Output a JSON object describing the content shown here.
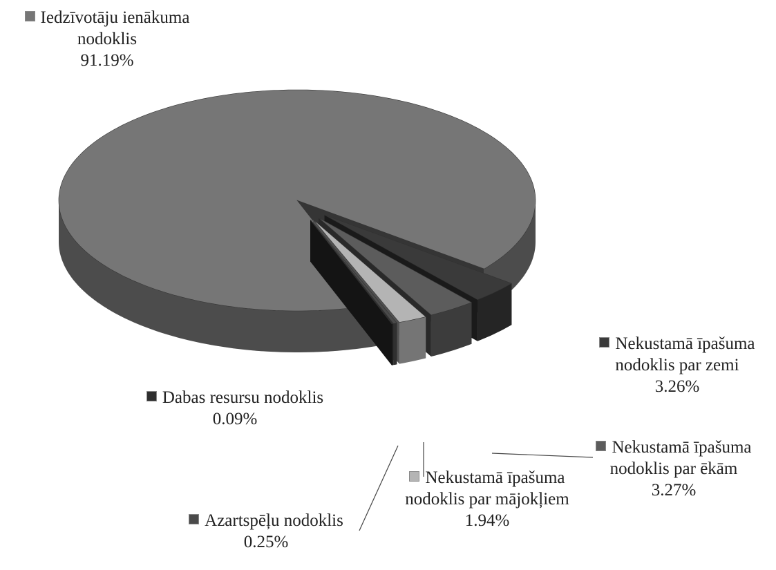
{
  "chart_data": {
    "type": "pie",
    "categories": [
      "Iedzīvotāju ienākuma nodoklis",
      "Nekustamā īpašuma nodoklis par zemi",
      "Nekustamā īpašuma nodoklis par ēkām",
      "Nekustamā īpašuma nodoklis par mājokļiem",
      "Azartspēļu nodoklis",
      "Dabas resursu nodoklis"
    ],
    "values": [
      91.19,
      3.26,
      3.27,
      1.94,
      0.25,
      0.09
    ],
    "value_labels": [
      "91.19%",
      "3.26%",
      "3.27%",
      "1.94%",
      "0.25%",
      "0.09%"
    ],
    "colors": [
      "#767676",
      "#3a3a3a",
      "#5c5c5c",
      "#b4b4b4",
      "#4a4a4a",
      "#2e2e2e"
    ]
  }
}
